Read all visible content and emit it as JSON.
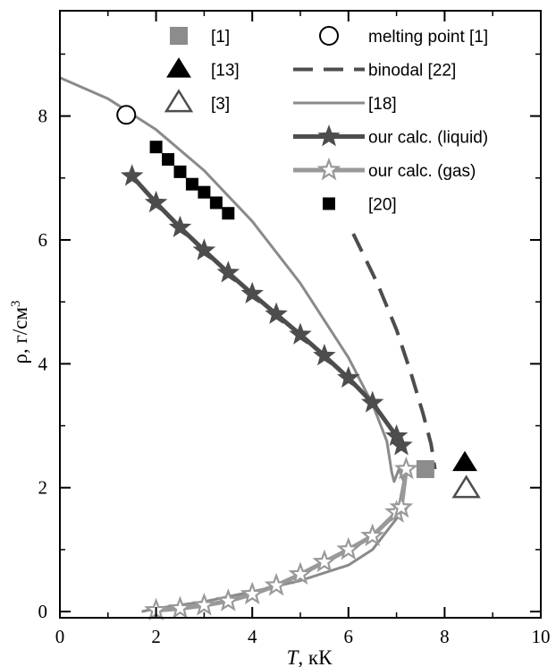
{
  "chart_data": {
    "type": "scatter",
    "xlabel_symbol": "T",
    "xlabel_unit": ", кК",
    "ylabel_main": "ρ, г/см",
    "ylabel_sup": "3",
    "xlim": [
      0,
      10
    ],
    "ylim": [
      -0.1,
      9.7
    ],
    "xticks": [
      0,
      2,
      4,
      6,
      8,
      10
    ],
    "yticks": [
      0,
      2,
      4,
      6,
      8
    ],
    "grid": false,
    "legend_position": "top",
    "colors": {
      "dark": "#4d4d4d",
      "light": "#999999",
      "square_gray": "#8c8c8c",
      "line18": "#8a8a8a",
      "binodal": "#4d4d4d",
      "black": "#000000"
    },
    "series": [
      {
        "name": "[1]",
        "marker": "square-gray",
        "points": [
          [
            7.6,
            2.3
          ]
        ]
      },
      {
        "name": "melting point [1]",
        "marker": "circle-open",
        "points": [
          [
            1.38,
            8.02
          ]
        ]
      },
      {
        "name": "[13]",
        "marker": "triangle-filled",
        "points": [
          [
            8.42,
            2.4
          ]
        ]
      },
      {
        "name": "binodal [22]",
        "marker": "dashed-line",
        "points": [
          [
            6.1,
            6.1
          ],
          [
            6.6,
            5.3
          ],
          [
            7.0,
            4.55
          ],
          [
            7.3,
            3.85
          ],
          [
            7.55,
            3.2
          ],
          [
            7.72,
            2.7
          ],
          [
            7.8,
            2.3
          ]
        ]
      },
      {
        "name": "[3]",
        "marker": "triangle-open",
        "points": [
          [
            8.45,
            1.98
          ]
        ]
      },
      {
        "name": "[18]",
        "marker": "thin-line",
        "points": [
          [
            0,
            8.62
          ],
          [
            1,
            8.28
          ],
          [
            2,
            7.78
          ],
          [
            3,
            7.12
          ],
          [
            4,
            6.3
          ],
          [
            5,
            5.3
          ],
          [
            6,
            4.1
          ],
          [
            6.5,
            3.35
          ],
          [
            6.8,
            2.75
          ],
          [
            6.9,
            2.25
          ],
          [
            6.95,
            2.1
          ],
          [
            7.05,
            2.3
          ],
          [
            7.15,
            2.1
          ],
          [
            7.0,
            1.5
          ],
          [
            6.5,
            1.0
          ],
          [
            6.0,
            0.75
          ],
          [
            5.0,
            0.5
          ],
          [
            4.0,
            0.32
          ],
          [
            3.0,
            0.16
          ],
          [
            2.0,
            0.05
          ],
          [
            1.7,
            0.0
          ]
        ]
      },
      {
        "name": "our calc. (liquid)",
        "marker": "star-line-dark",
        "points": [
          [
            1.5,
            7.03
          ],
          [
            2.0,
            6.6
          ],
          [
            2.5,
            6.2
          ],
          [
            3.0,
            5.83
          ],
          [
            3.5,
            5.47
          ],
          [
            4.0,
            5.13
          ],
          [
            4.5,
            4.8
          ],
          [
            5.0,
            4.47
          ],
          [
            5.5,
            4.13
          ],
          [
            6.0,
            3.77
          ],
          [
            6.5,
            3.37
          ],
          [
            7.0,
            2.83
          ],
          [
            7.1,
            2.68
          ]
        ]
      },
      {
        "name": "our calc. (gas)",
        "marker": "star-line-light",
        "points": [
          [
            2.0,
            0.02
          ],
          [
            2.5,
            0.05
          ],
          [
            3.0,
            0.1
          ],
          [
            3.5,
            0.17
          ],
          [
            4.0,
            0.28
          ],
          [
            4.5,
            0.42
          ],
          [
            5.0,
            0.6
          ],
          [
            5.5,
            0.8
          ],
          [
            6.0,
            1.0
          ],
          [
            6.5,
            1.22
          ],
          [
            7.0,
            1.6
          ],
          [
            7.1,
            1.68
          ],
          [
            7.2,
            2.3
          ]
        ]
      },
      {
        "name": "[20]",
        "marker": "square-black",
        "points": [
          [
            2.0,
            7.5
          ],
          [
            2.25,
            7.3
          ],
          [
            2.5,
            7.1
          ],
          [
            2.75,
            6.9
          ],
          [
            3.0,
            6.77
          ],
          [
            3.25,
            6.6
          ],
          [
            3.5,
            6.43
          ]
        ]
      }
    ]
  }
}
